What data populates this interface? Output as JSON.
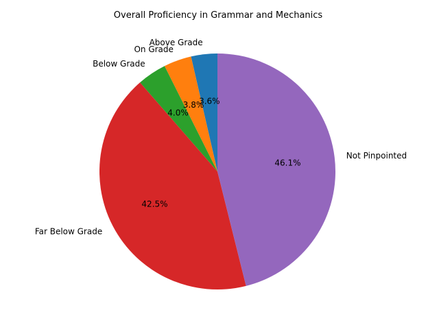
{
  "chart_data": {
    "type": "pie",
    "title": "Overall Proficiency in Grammar and Mechanics",
    "slices": [
      {
        "label": "Above Grade",
        "percent": 3.6,
        "percent_label": "3.6%",
        "color": "#1f77b4"
      },
      {
        "label": "On Grade",
        "percent": 3.8,
        "percent_label": "3.8%",
        "color": "#ff7f0e"
      },
      {
        "label": "Below Grade",
        "percent": 4.0,
        "percent_label": "4.0%",
        "color": "#2ca02c"
      },
      {
        "label": "Far Below Grade",
        "percent": 42.5,
        "percent_label": "42.5%",
        "color": "#d62728"
      },
      {
        "label": "Not Pinpointed",
        "percent": 46.1,
        "percent_label": "46.1%",
        "color": "#9467bd"
      }
    ],
    "start_angle_deg": 90,
    "direction": "counterclockwise",
    "legend": "none"
  }
}
